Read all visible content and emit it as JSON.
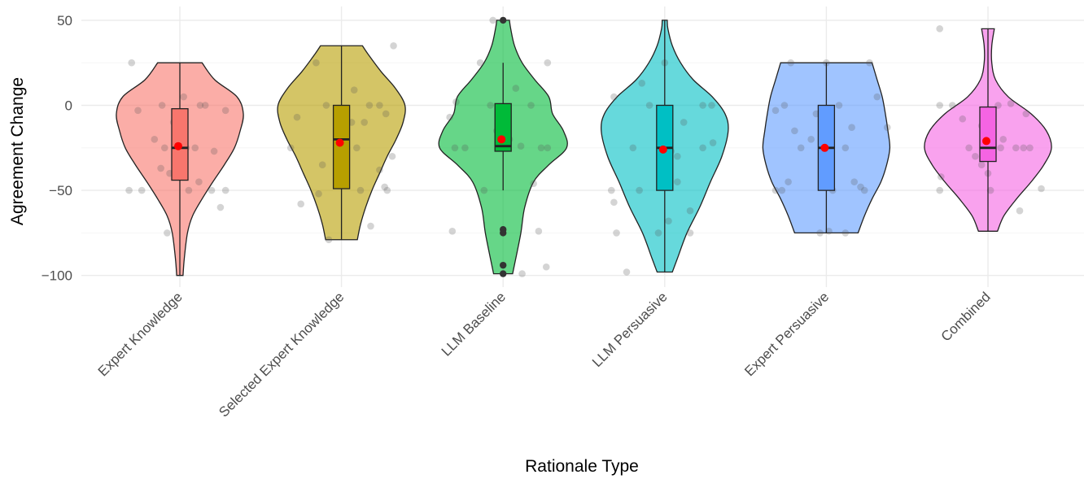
{
  "chart_data": {
    "type": "violin",
    "xlabel": "Rationale Type",
    "ylabel": "Agreement Change",
    "ylim": [
      -105,
      55
    ],
    "yticks": [
      50,
      0,
      -50,
      -100
    ],
    "grid": true,
    "legend": "none",
    "categories": [
      "Expert Knowledge",
      "Selected Expert Knowledge",
      "LLM Baseline",
      "LLM Persuasive",
      "Expert Persuasive",
      "Combined"
    ],
    "colors": [
      "#F8766D",
      "#B79F00",
      "#00BA38",
      "#00BFC4",
      "#619CFF",
      "#F564E3"
    ],
    "groups": [
      {
        "category": "Expert Knowledge",
        "violin_min": -100,
        "violin_max": 25,
        "density": [
          [
            -100,
            0.05
          ],
          [
            -90,
            0.07
          ],
          [
            -75,
            0.12
          ],
          [
            -65,
            0.2
          ],
          [
            -55,
            0.35
          ],
          [
            -45,
            0.52
          ],
          [
            -35,
            0.7
          ],
          [
            -25,
            0.86
          ],
          [
            -15,
            0.95
          ],
          [
            -5,
            1.0
          ],
          [
            5,
            0.9
          ],
          [
            15,
            0.55
          ],
          [
            25,
            0.35
          ]
        ],
        "box": {
          "q1": -44,
          "median": -25,
          "q3": -2,
          "whisker_low": -100,
          "whisker_high": 25
        },
        "mean": -24,
        "outliers": [],
        "points": [
          [
            25,
            -0.38
          ],
          [
            -50,
            -0.4
          ],
          [
            -50,
            -0.3
          ],
          [
            -3,
            -0.33
          ],
          [
            0,
            -0.14
          ],
          [
            -20,
            -0.2
          ],
          [
            -25,
            -0.12
          ],
          [
            -37,
            -0.15
          ],
          [
            -40,
            -0.08
          ],
          [
            -75,
            -0.1
          ],
          [
            -25,
            0.05
          ],
          [
            5,
            0.03
          ],
          [
            0,
            0.16
          ],
          [
            0,
            0.2
          ],
          [
            -25,
            0.12
          ],
          [
            -50,
            0.07
          ],
          [
            -50,
            0.25
          ],
          [
            -27,
            0.27
          ],
          [
            -60,
            0.32
          ],
          [
            -50,
            0.36
          ],
          [
            -3,
            0.36
          ],
          [
            -10,
            -0.05
          ],
          [
            -45,
            0.15
          ]
        ]
      },
      {
        "category": "Selected Expert Knowledge",
        "violin_min": -79,
        "violin_max": 35,
        "density": [
          [
            -79,
            0.25
          ],
          [
            -70,
            0.3
          ],
          [
            -60,
            0.38
          ],
          [
            -50,
            0.48
          ],
          [
            -40,
            0.6
          ],
          [
            -30,
            0.72
          ],
          [
            -20,
            0.86
          ],
          [
            -10,
            0.97
          ],
          [
            0,
            1.0
          ],
          [
            10,
            0.85
          ],
          [
            20,
            0.62
          ],
          [
            30,
            0.42
          ],
          [
            35,
            0.33
          ]
        ],
        "box": {
          "q1": -49,
          "median": -20,
          "q3": 0,
          "whisker_low": -79,
          "whisker_high": 35
        },
        "mean": -22,
        "outliers": [],
        "points": [
          [
            25,
            -0.2
          ],
          [
            -58,
            -0.32
          ],
          [
            -7,
            -0.35
          ],
          [
            0,
            -0.12
          ],
          [
            -25,
            -0.4
          ],
          [
            -35,
            -0.15
          ],
          [
            -52,
            -0.18
          ],
          [
            -79,
            -0.1
          ],
          [
            -47,
            0.02
          ],
          [
            -10,
            0.08
          ],
          [
            -25,
            0.12
          ],
          [
            -50,
            0.15
          ],
          [
            9,
            0.1
          ],
          [
            -45,
            0.0
          ],
          [
            0,
            0.22
          ],
          [
            0,
            0.3
          ],
          [
            -38,
            0.3
          ],
          [
            -50,
            0.36
          ],
          [
            -48,
            0.34
          ],
          [
            -30,
            0.4
          ],
          [
            35,
            0.41
          ],
          [
            -71,
            0.23
          ],
          [
            -10,
            0.18
          ],
          [
            -5,
            0.35
          ]
        ]
      },
      {
        "category": "LLM Baseline",
        "violin_min": -99,
        "violin_max": 50,
        "density": [
          [
            -99,
            0.15
          ],
          [
            -90,
            0.2
          ],
          [
            -75,
            0.28
          ],
          [
            -60,
            0.34
          ],
          [
            -45,
            0.48
          ],
          [
            -35,
            0.72
          ],
          [
            -25,
            1.0
          ],
          [
            -15,
            0.95
          ],
          [
            -5,
            0.78
          ],
          [
            5,
            0.72
          ],
          [
            15,
            0.5
          ],
          [
            25,
            0.3
          ],
          [
            35,
            0.18
          ],
          [
            45,
            0.12
          ],
          [
            50,
            0.1
          ]
        ],
        "box": {
          "q1": -27,
          "median": -24,
          "q3": 1,
          "whisker_low": -50,
          "whisker_high": 25
        },
        "mean": -20,
        "outliers": [
          -75,
          -73,
          -94,
          -99,
          50
        ],
        "points": [
          [
            25,
            -0.18
          ],
          [
            50,
            -0.08
          ],
          [
            -25,
            -0.3
          ],
          [
            -25,
            -0.38
          ],
          [
            2,
            -0.37
          ],
          [
            -7,
            -0.42
          ],
          [
            -74,
            -0.4
          ],
          [
            -50,
            -0.15
          ],
          [
            -15,
            -0.05
          ],
          [
            -20,
            0.05
          ],
          [
            -24,
            0.14
          ],
          [
            0,
            0.22
          ],
          [
            -25,
            0.3
          ],
          [
            -46,
            0.24
          ],
          [
            -74,
            0.28
          ],
          [
            -95,
            0.34
          ],
          [
            -99,
            0.15
          ],
          [
            -25,
            0.35
          ],
          [
            25,
            0.35
          ],
          [
            0,
            -0.1
          ],
          [
            10,
            0.1
          ],
          [
            -5,
            0.0
          ]
        ]
      },
      {
        "category": "LLM Persuasive",
        "violin_min": -98,
        "violin_max": 50,
        "density": [
          [
            -98,
            0.12
          ],
          [
            -90,
            0.2
          ],
          [
            -75,
            0.35
          ],
          [
            -60,
            0.55
          ],
          [
            -45,
            0.72
          ],
          [
            -30,
            0.9
          ],
          [
            -15,
            1.0
          ],
          [
            -5,
            0.95
          ],
          [
            5,
            0.75
          ],
          [
            15,
            0.45
          ],
          [
            25,
            0.25
          ],
          [
            35,
            0.12
          ],
          [
            45,
            0.05
          ],
          [
            50,
            0.04
          ]
        ],
        "box": {
          "q1": -50,
          "median": -25,
          "q3": 0,
          "whisker_low": -98,
          "whisker_high": 50
        },
        "mean": -26,
        "outliers": [],
        "points": [
          [
            5,
            -0.4
          ],
          [
            -50,
            -0.42
          ],
          [
            -57,
            -0.4
          ],
          [
            -75,
            -0.38
          ],
          [
            -98,
            -0.3
          ],
          [
            -25,
            -0.25
          ],
          [
            13,
            -0.18
          ],
          [
            0,
            -0.12
          ],
          [
            -75,
            -0.05
          ],
          [
            -3,
            -0.02
          ],
          [
            25,
            0.0
          ],
          [
            -10,
            0.15
          ],
          [
            -45,
            0.1
          ],
          [
            -68,
            0.03
          ],
          [
            -27,
            0.05
          ],
          [
            0,
            0.3
          ],
          [
            -62,
            0.2
          ],
          [
            -75,
            0.2
          ],
          [
            -25,
            0.3
          ],
          [
            -22,
            0.38
          ],
          [
            0,
            0.37
          ],
          [
            -50,
            -0.2
          ],
          [
            -30,
            0.1
          ]
        ]
      },
      {
        "category": "Expert Persuasive",
        "violin_min": -75,
        "violin_max": 25,
        "density": [
          [
            -75,
            0.5
          ],
          [
            -65,
            0.6
          ],
          [
            -55,
            0.72
          ],
          [
            -45,
            0.86
          ],
          [
            -35,
            0.95
          ],
          [
            -25,
            1.0
          ],
          [
            -15,
            0.97
          ],
          [
            -5,
            0.93
          ],
          [
            5,
            0.88
          ],
          [
            15,
            0.8
          ],
          [
            25,
            0.72
          ]
        ],
        "box": {
          "q1": -50,
          "median": -25,
          "q3": 0,
          "whisker_low": -75,
          "whisker_high": 25
        },
        "mean": -25,
        "outliers": [],
        "points": [
          [
            -3,
            -0.4
          ],
          [
            0,
            -0.33
          ],
          [
            25,
            -0.28
          ],
          [
            -15,
            -0.25
          ],
          [
            -25,
            -0.2
          ],
          [
            -45,
            -0.3
          ],
          [
            -50,
            -0.35
          ],
          [
            -50,
            -0.4
          ],
          [
            -75,
            -0.05
          ],
          [
            -5,
            -0.08
          ],
          [
            -30,
            0.02
          ],
          [
            25,
            0.0
          ],
          [
            -50,
            0.05
          ],
          [
            -74,
            0.02
          ],
          [
            0,
            0.1
          ],
          [
            -25,
            0.15
          ],
          [
            -13,
            0.2
          ],
          [
            -50,
            0.3
          ],
          [
            -48,
            0.27
          ],
          [
            -75,
            0.15
          ],
          [
            -45,
            0.22
          ],
          [
            25,
            0.34
          ],
          [
            5,
            0.4
          ],
          [
            -13,
            0.48
          ],
          [
            -20,
            -0.12
          ]
        ]
      },
      {
        "category": "Combined",
        "violin_min": -74,
        "violin_max": 45,
        "density": [
          [
            -74,
            0.15
          ],
          [
            -65,
            0.25
          ],
          [
            -55,
            0.45
          ],
          [
            -45,
            0.68
          ],
          [
            -35,
            0.88
          ],
          [
            -25,
            1.0
          ],
          [
            -15,
            0.92
          ],
          [
            -5,
            0.68
          ],
          [
            5,
            0.32
          ],
          [
            15,
            0.12
          ],
          [
            25,
            0.06
          ],
          [
            35,
            0.06
          ],
          [
            45,
            0.1
          ]
        ],
        "box": {
          "q1": -33,
          "median": -25,
          "q3": -1,
          "whisker_low": -74,
          "whisker_high": 45
        },
        "mean": -21,
        "outliers": [],
        "points": [
          [
            45,
            -0.38
          ],
          [
            0,
            -0.38
          ],
          [
            -42,
            -0.37
          ],
          [
            -50,
            -0.38
          ],
          [
            0,
            -0.28
          ],
          [
            -8,
            -0.2
          ],
          [
            -25,
            -0.15
          ],
          [
            -30,
            -0.1
          ],
          [
            -12,
            -0.05
          ],
          [
            -35,
            -0.05
          ],
          [
            -25,
            0.02
          ],
          [
            -40,
            0.0
          ],
          [
            -50,
            0.02
          ],
          [
            -25,
            0.1
          ],
          [
            0,
            0.08
          ],
          [
            1,
            0.18
          ],
          [
            -25,
            0.22
          ],
          [
            -25,
            0.28
          ],
          [
            -25,
            0.33
          ],
          [
            -62,
            0.25
          ],
          [
            -49,
            0.42
          ],
          [
            -5,
            0.3
          ],
          [
            -20,
            0.12
          ]
        ]
      }
    ]
  }
}
